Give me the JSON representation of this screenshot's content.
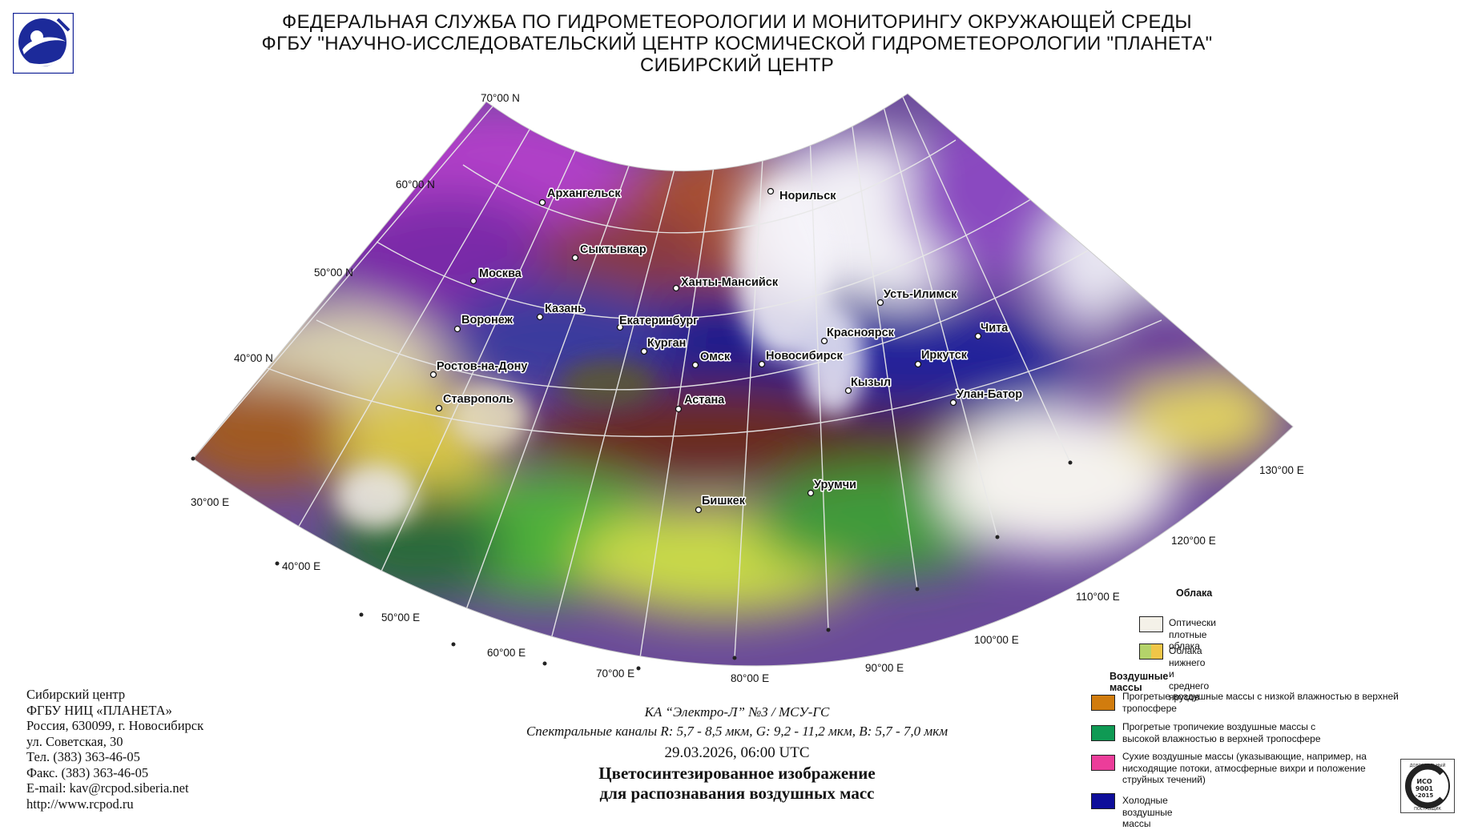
{
  "header": {
    "line1": "ФЕДЕРАЛЬНАЯ СЛУЖБА ПО ГИДРОМЕТЕОРОЛОГИИ И МОНИТОРИНГУ ОКРУЖАЮЩЕЙ СРЕДЫ",
    "line2": "ФГБУ \"НАУЧНО-ИССЛЕДОВАТЕЛЬСКИЙ ЦЕНТР КОСМИЧЕСКОЙ ГИДРОМЕТЕОРОЛОГИИ \"ПЛАНЕТА\"",
    "line3": "СИБИРСКИЙ ЦЕНТР"
  },
  "map": {
    "latitude_labels": [
      "70°00 N",
      "60°00 N",
      "50°00 N",
      "40°00 N"
    ],
    "longitude_labels": [
      "30°00 E",
      "40°00 E",
      "50°00 E",
      "60°00 E",
      "70°00 E",
      "80°00 E",
      "90°00 E",
      "100°00 E",
      "110°00 E",
      "120°00 E",
      "130°00 E"
    ],
    "cities": [
      "Архангельск",
      "Норильск",
      "Сыктывкар",
      "Москва",
      "Ханты-Мансийск",
      "Казань",
      "Воронеж",
      "Екатеринбург",
      "Усть-Илимск",
      "Курган",
      "Омск",
      "Новосибирск",
      "Красноярск",
      "Чита",
      "Иркутск",
      "Ростов-на-Дону",
      "Кызыл",
      "Улан-Батор",
      "Ставрополь",
      "Астана",
      "Урумчи",
      "Бишкек"
    ]
  },
  "address": {
    "lines": [
      "Сибирский центр",
      "ФГБУ НИЦ «ПЛАНЕТА»",
      "Россия, 630099, г. Новосибирск",
      "ул. Советская, 30",
      "Тел. (383) 363-46-05",
      "Факс. (383) 363-46-05",
      "E-mail: kav@rcpod.siberia.net",
      "http://www.rcpod.ru"
    ]
  },
  "caption": {
    "satellite": "КА “Электро-Л” №3 / МСУ-ГС",
    "channels": "Спектральные каналы R: 5,7 - 8,5 мкм, G: 9,2 - 11,2 мкм, B: 5,7 - 7,0 мкм",
    "datetime": "29.03.2026, 06:00 UTC",
    "title_line1": "Цветосинтезированное изображение",
    "title_line2": "для распознавания воздушных масс"
  },
  "legend": {
    "clouds_heading": "Облака",
    "clouds": [
      {
        "label": "Оптически плотные облака",
        "colors": [
          "#f4f1e8"
        ]
      },
      {
        "label": "Облака нижнего и среднего ярусов",
        "colors": [
          "#b4d36a",
          "#f0c648"
        ]
      }
    ],
    "airmass_heading": "Воздушные массы",
    "airmasses": [
      {
        "label": "Прогретые воздушные массы с низкой влажностью в верхней тропосфере",
        "color": "#d17c0e"
      },
      {
        "label": "Прогретые тропичекие воздушные массы с высокой влажностью в верхней тропосфере",
        "color": "#0f9a54"
      },
      {
        "label": "Сухие воздушные массы (указывающие, например, на нисходящие потоки, атмосферные вихри и положение струйных течений)",
        "color": "#ec3d9a"
      },
      {
        "label": "Холодные воздушные массы",
        "color": "#0e0e9a"
      }
    ]
  },
  "colors": {
    "magenta": "#b040c8",
    "purple": "#7a2aa8",
    "navy": "#1a1a8c",
    "brown": "#8a3a22",
    "olive": "#7a7a30",
    "green": "#4fb03a",
    "yellow_green": "#c8d84a",
    "white_cloud": "#f2f0f6"
  },
  "iso_logo_text": [
    "ДОБРОВОЛЬНЫЙ",
    "ИСО",
    "9001",
    "-2015",
    "ПОСТАВЩИК"
  ]
}
